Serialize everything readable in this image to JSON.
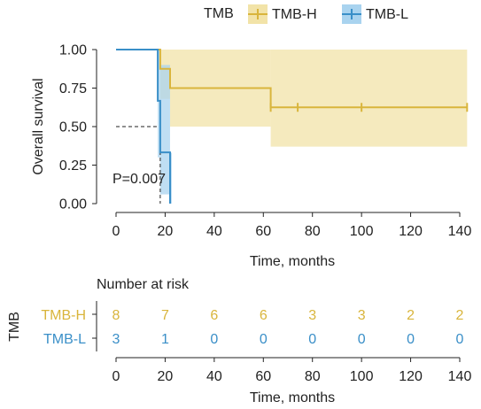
{
  "chart_data": [
    {
      "type": "line",
      "subtype": "kaplan-meier",
      "title": "",
      "xlabel": "Time, months",
      "ylabel": "Overall survival",
      "xlim": [
        -5,
        145
      ],
      "ylim": [
        0,
        1
      ],
      "x_ticks": [
        0,
        20,
        40,
        60,
        80,
        100,
        120,
        140
      ],
      "y_ticks": [
        "0.00",
        "0.25",
        "0.50",
        "0.75",
        "1.00"
      ],
      "grid": false,
      "legend": {
        "title": "TMB",
        "position": "top"
      },
      "annotation": "P=0.007",
      "median_survival": {
        "y": 0.5,
        "x": 18
      },
      "series": [
        {
          "name": "TMB-H",
          "color": "#d9b53c",
          "band_color": "#f2e3a8",
          "steps": [
            [
              0,
              1.0
            ],
            [
              18,
              1.0
            ],
            [
              18,
              0.875
            ],
            [
              22,
              0.875
            ],
            [
              22,
              0.75
            ],
            [
              63,
              0.75
            ],
            [
              63,
              0.625
            ],
            [
              143,
              0.625
            ]
          ],
          "ci": [
            [
              18,
              0.68,
              1.0
            ],
            [
              22,
              0.5,
              1.0
            ],
            [
              63,
              0.37,
              1.0
            ],
            [
              143,
              0.37,
              1.0
            ]
          ],
          "censored": [
            [
              63,
              0.625
            ],
            [
              74,
              0.625
            ],
            [
              100,
              0.625
            ],
            [
              143,
              0.625
            ]
          ]
        },
        {
          "name": "TMB-L",
          "color": "#3a8fc8",
          "band_color": "#a9d3ef",
          "steps": [
            [
              0,
              1.0
            ],
            [
              17,
              1.0
            ],
            [
              17,
              0.667
            ],
            [
              18,
              0.667
            ],
            [
              18,
              0.333
            ],
            [
              22,
              0.333
            ],
            [
              22,
              0.0
            ]
          ],
          "ci": [
            [
              17,
              0.3,
              1.0
            ],
            [
              18,
              0.06,
              0.9
            ],
            [
              22,
              0.0,
              0.33
            ]
          ],
          "censored": []
        }
      ]
    },
    {
      "type": "table",
      "title": "Number at risk",
      "xlabel": "Time, months",
      "ylabel": "TMB",
      "x_ticks": [
        0,
        20,
        40,
        60,
        80,
        100,
        120,
        140
      ],
      "rows": [
        {
          "name": "TMB-H",
          "color": "#d9b53c",
          "values": [
            8,
            7,
            6,
            6,
            3,
            3,
            2,
            2
          ]
        },
        {
          "name": "TMB-L",
          "color": "#3a8fc8",
          "values": [
            3,
            1,
            0,
            0,
            0,
            0,
            0,
            0
          ]
        }
      ]
    }
  ]
}
